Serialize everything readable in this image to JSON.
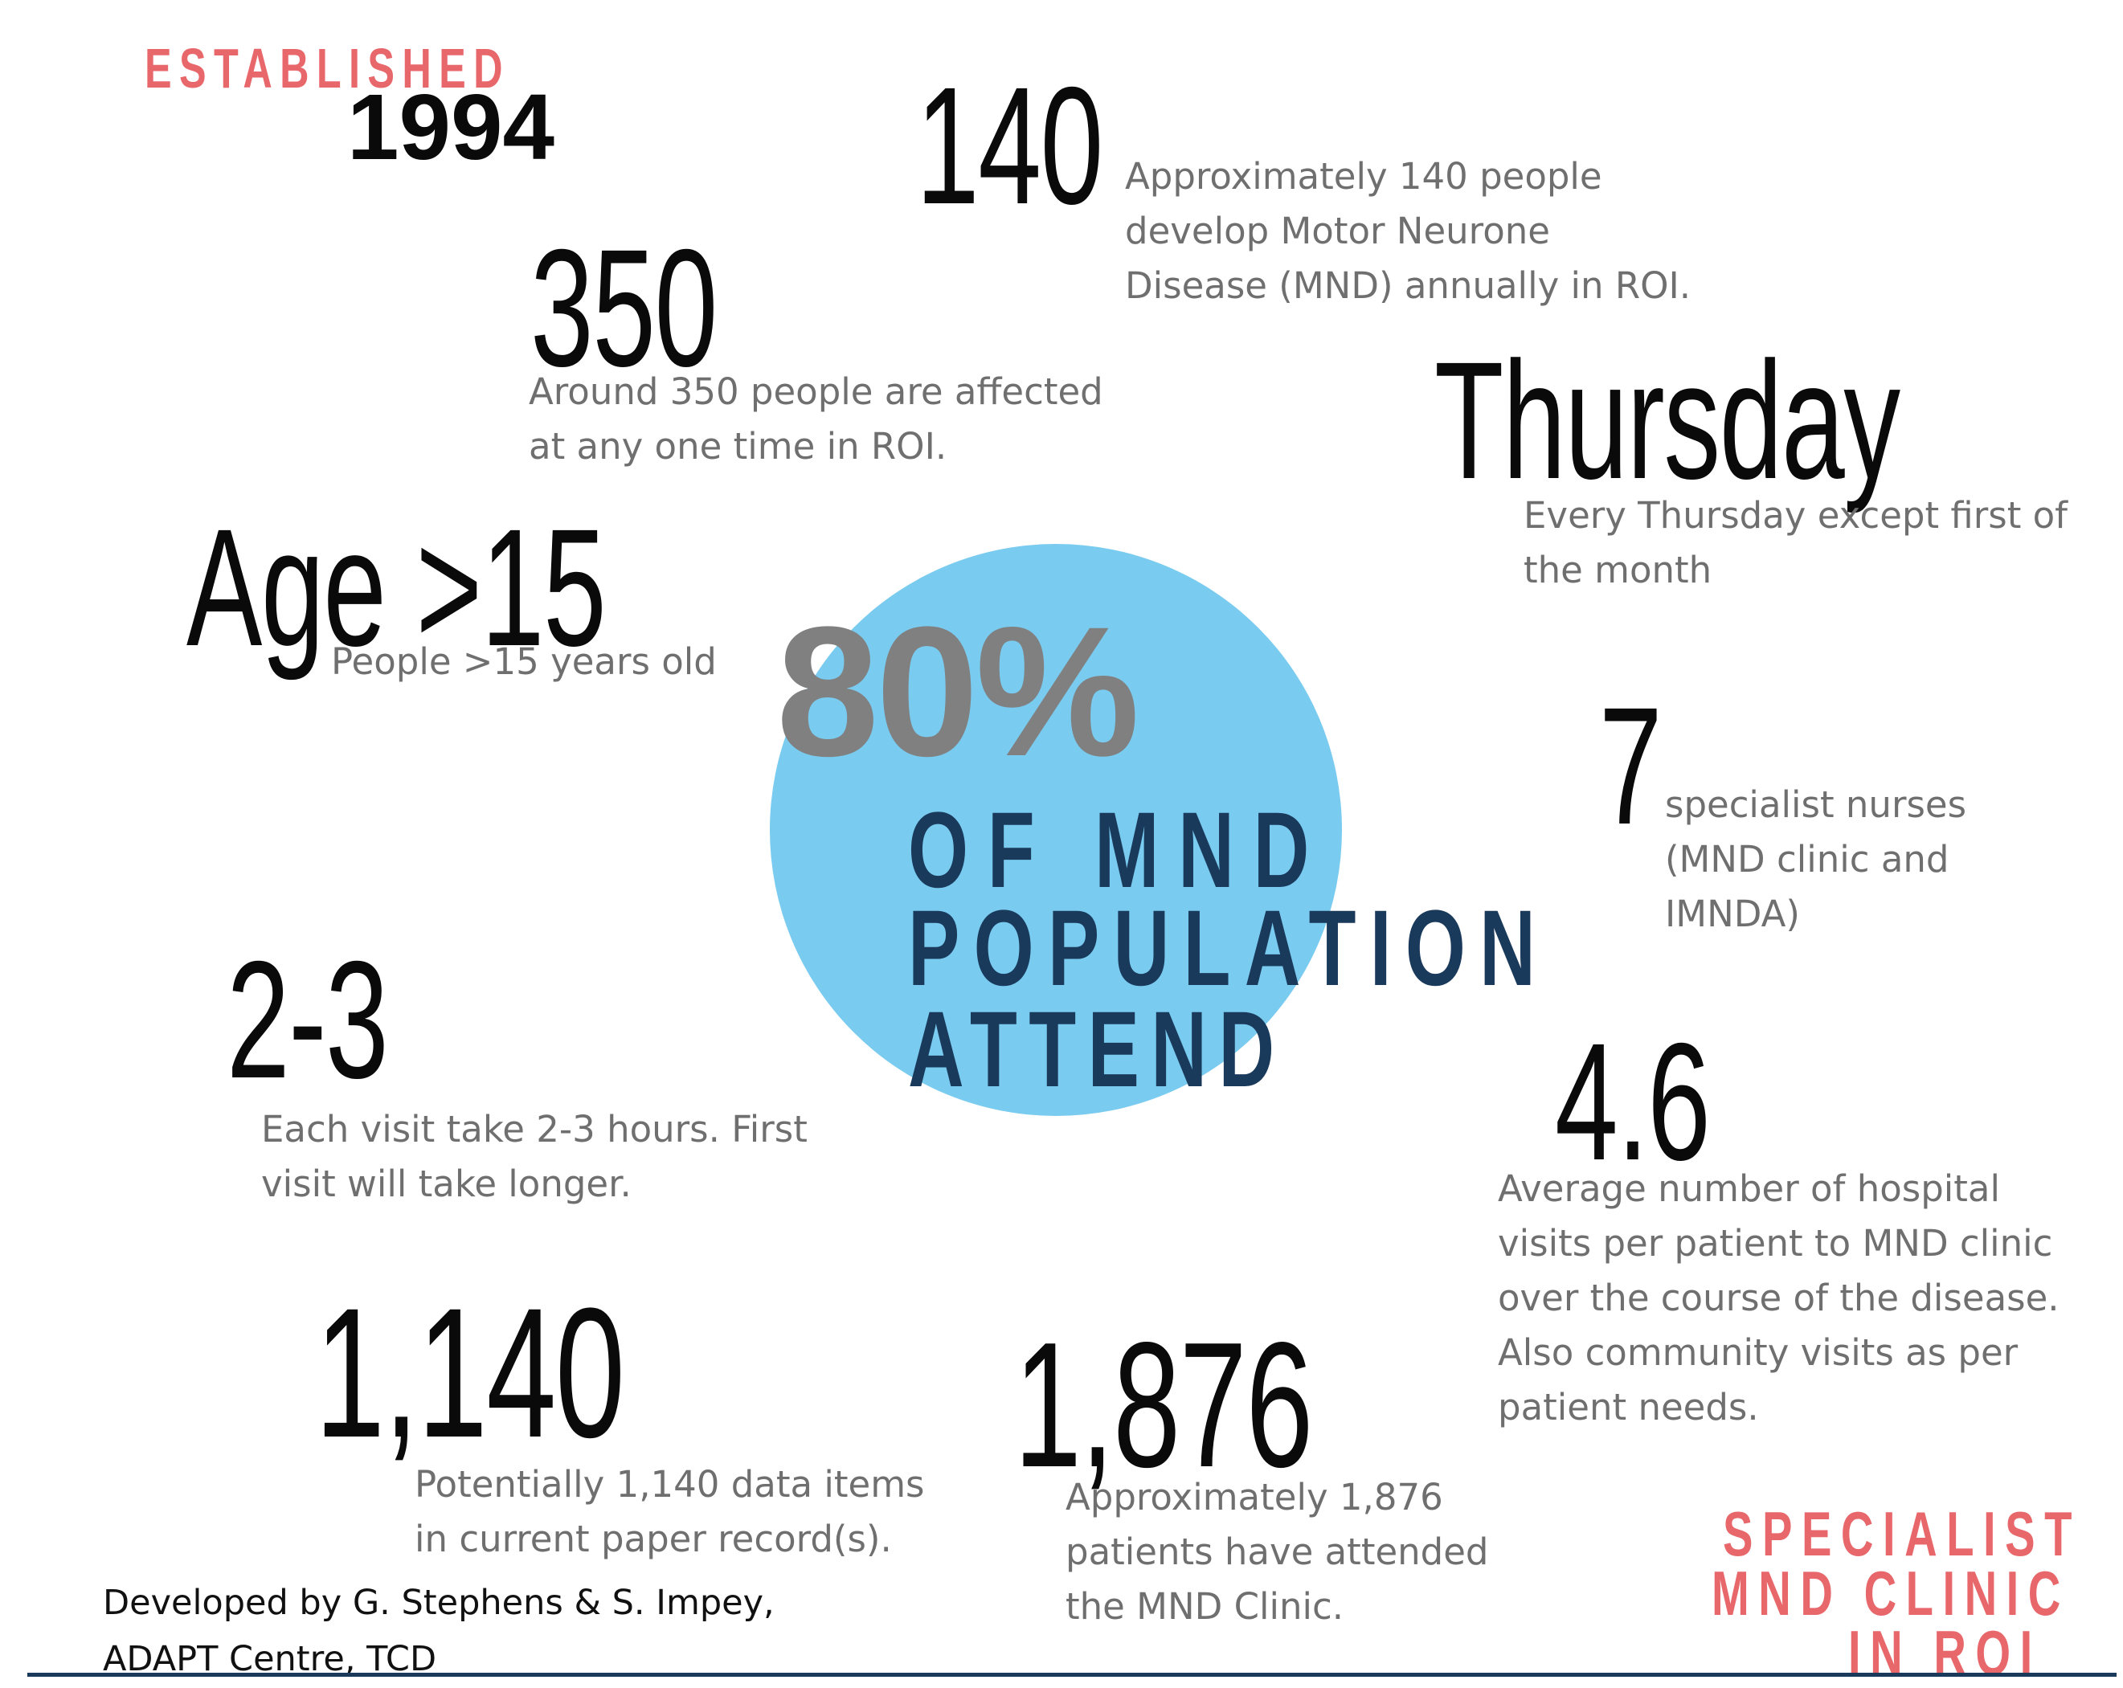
{
  "colors": {
    "accent_red": "#e8676b",
    "navy": "#1a3a5c",
    "circle_blue": "#7acbf0",
    "percent_gray": "#808080",
    "figure_black": "#0a0a0a",
    "desc_gray": "#6f6f6f"
  },
  "established": {
    "label": "ESTABLISHED",
    "year": "1994"
  },
  "stats": {
    "s140": {
      "figure": "140",
      "lines": [
        "Approximately 140 people",
        "develop Motor Neurone",
        "Disease (MND) annually in ROI."
      ]
    },
    "s350": {
      "figure": "350",
      "lines": [
        "Around 350 people are affected",
        "at any one time in ROI."
      ]
    },
    "thursday": {
      "figure": "Thursday",
      "lines": [
        "Every Thursday except first of",
        "the month"
      ]
    },
    "age": {
      "figure": "Age >15",
      "lines": [
        "People >15 years old"
      ]
    },
    "nurses": {
      "figure": "7",
      "lines": [
        "specialist nurses",
        "(MND clinic and",
        "IMNDA)"
      ]
    },
    "hours": {
      "figure": "2-3",
      "lines": [
        "Each visit take 2-3 hours. First",
        "visit will take longer."
      ]
    },
    "visits": {
      "figure": "4.6",
      "lines": [
        "Average number of hospital",
        "visits per patient to MND clinic",
        "over the course of the disease.",
        "Also community visits as per",
        "patient needs."
      ]
    },
    "data_items": {
      "figure": "1,140",
      "lines": [
        "Potentially 1,140 data items",
        "in current paper record(s)."
      ]
    },
    "patients": {
      "figure": "1,876",
      "lines": [
        "Approximately 1,876",
        "patients have attended",
        "the MND Clinic."
      ]
    }
  },
  "center": {
    "percent": "80%",
    "lines": [
      "OF MND",
      "POPULATION",
      "ATTEND"
    ]
  },
  "credit": {
    "lines": [
      "Developed by G. Stephens & S. Impey,",
      "ADAPT Centre, TCD"
    ]
  },
  "title": {
    "lines": [
      "SPECIALIST",
      "MND CLINIC",
      "IN ROI"
    ]
  }
}
